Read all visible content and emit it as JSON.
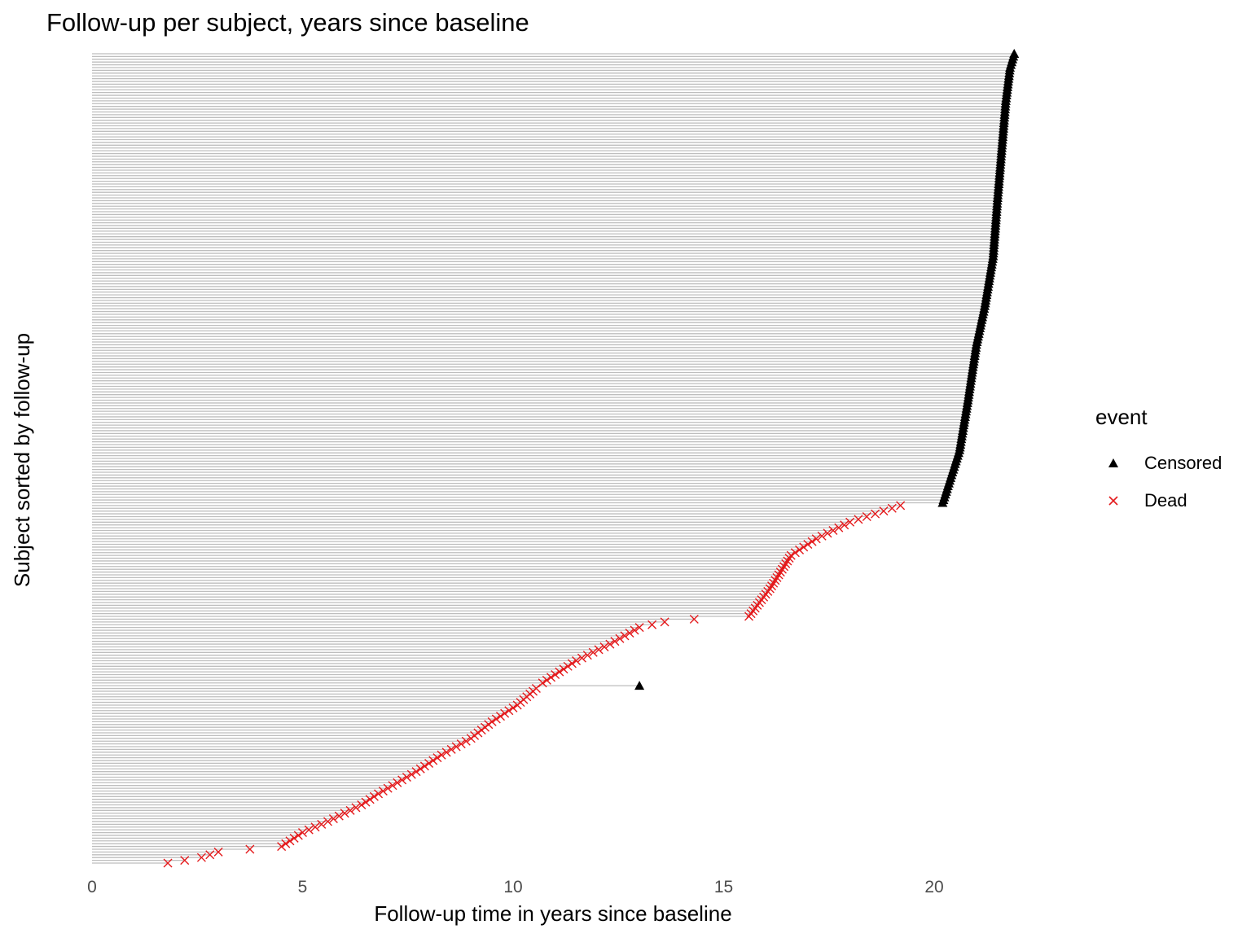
{
  "chart_data": {
    "type": "scatter",
    "title": "Follow-up per subject, years since baseline",
    "xlabel": "Follow-up time in years since baseline",
    "ylabel": "Subject sorted by follow-up",
    "xlim": [
      0,
      22
    ],
    "x_ticks": [
      0,
      5,
      10,
      15,
      20
    ],
    "x_tick_labels": [
      "0",
      "5",
      "10",
      "15",
      "20"
    ],
    "grid": false,
    "legend": {
      "title": "event",
      "position": "right"
    },
    "segment_color": "#bebebe",
    "series": [
      {
        "name": "Censored",
        "marker": "triangle",
        "color": "#000000",
        "anchors": [
          [
            1,
            20.2
          ],
          [
            20,
            20.6
          ],
          [
            38,
            20.8
          ],
          [
            58,
            21.0
          ],
          [
            72,
            21.2
          ],
          [
            90,
            21.4
          ],
          [
            110,
            21.5
          ],
          [
            128,
            21.6
          ],
          [
            146,
            21.7
          ],
          [
            158,
            21.8
          ],
          [
            163,
            21.9
          ]
        ],
        "singletons": [
          [
            64,
            13.0
          ]
        ]
      },
      {
        "name": "Dead",
        "marker": "x",
        "color": "#e41a1c",
        "anchors": [
          [
            1,
            1.8
          ],
          [
            3,
            2.6
          ],
          [
            5,
            3.0
          ],
          [
            7,
            4.5
          ],
          [
            12,
            5.0
          ],
          [
            16,
            5.6
          ],
          [
            22,
            6.4
          ],
          [
            26,
            6.8
          ],
          [
            34,
            7.7
          ],
          [
            40,
            8.3
          ],
          [
            46,
            9.0
          ],
          [
            52,
            9.5
          ],
          [
            58,
            10.1
          ],
          [
            66,
            10.7
          ],
          [
            74,
            11.5
          ],
          [
            80,
            12.3
          ],
          [
            86,
            13.0
          ],
          [
            88,
            13.6
          ],
          [
            89,
            14.3
          ],
          [
            90,
            15.6
          ],
          [
            100,
            16.1
          ],
          [
            112,
            16.6
          ],
          [
            118,
            17.2
          ],
          [
            124,
            18.0
          ],
          [
            130,
            19.2
          ]
        ],
        "count": 130
      }
    ]
  }
}
